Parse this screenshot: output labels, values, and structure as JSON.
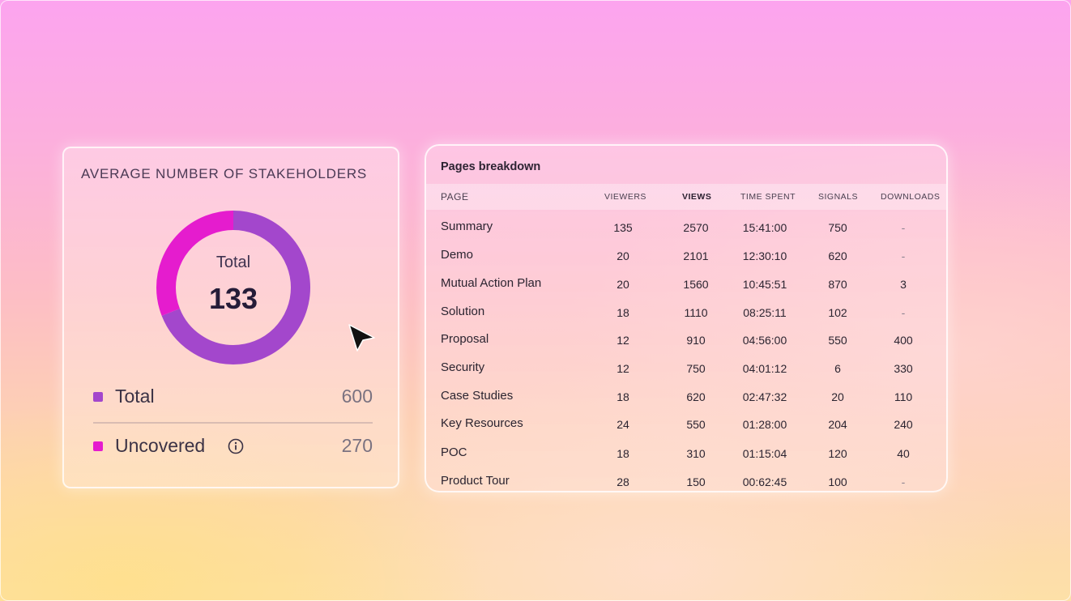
{
  "stakeholders": {
    "title": "AVERAGE NUMBER OF STAKEHOLDERS",
    "center_label": "Total",
    "center_value": "133",
    "donut_segments": [
      {
        "name": "Total",
        "fraction": 0.69,
        "color": "#a347cc"
      },
      {
        "name": "Uncovered",
        "fraction": 0.31,
        "color": "#e51cce"
      }
    ],
    "legend": [
      {
        "label": "Total",
        "value": "600",
        "color": "#a347cc"
      },
      {
        "label": "Uncovered",
        "value": "270",
        "color": "#e51cce",
        "icon": "info-icon"
      }
    ]
  },
  "pages_breakdown": {
    "title": "Pages breakdown",
    "columns": [
      "PAGE",
      "VIEWERS",
      "VIEWS",
      "TIME SPENT",
      "SIGNALS",
      "DOWNLOADS"
    ],
    "rows": [
      {
        "page": "Summary",
        "viewers": "135",
        "views": "2570",
        "time_spent": "15:41:00",
        "signals": "750",
        "downloads": "-"
      },
      {
        "page": "Demo",
        "viewers": "20",
        "views": "2101",
        "time_spent": "12:30:10",
        "signals": "620",
        "downloads": "-"
      },
      {
        "page": "Mutual Action Plan",
        "viewers": "20",
        "views": "1560",
        "time_spent": "10:45:51",
        "signals": "870",
        "downloads": "3"
      },
      {
        "page": "Solution",
        "viewers": "18",
        "views": "1110",
        "time_spent": "08:25:11",
        "signals": "102",
        "downloads": "-"
      },
      {
        "page": "Proposal",
        "viewers": "12",
        "views": "910",
        "time_spent": "04:56:00",
        "signals": "550",
        "downloads": "400"
      },
      {
        "page": "Security",
        "viewers": "12",
        "views": "750",
        "time_spent": "04:01:12",
        "signals": "6",
        "downloads": "330"
      },
      {
        "page": "Case Studies",
        "viewers": "18",
        "views": "620",
        "time_spent": "02:47:32",
        "signals": "20",
        "downloads": "110"
      },
      {
        "page": "Key Resources",
        "viewers": "24",
        "views": "550",
        "time_spent": "01:28:00",
        "signals": "204",
        "downloads": "240"
      },
      {
        "page": "POC",
        "viewers": "18",
        "views": "310",
        "time_spent": "01:15:04",
        "signals": "120",
        "downloads": "40"
      },
      {
        "page": "Product Tour",
        "viewers": "28",
        "views": "150",
        "time_spent": "00:62:45",
        "signals": "100",
        "downloads": "-"
      }
    ]
  },
  "pointer": {
    "icon": "cursor-arrow-icon"
  }
}
